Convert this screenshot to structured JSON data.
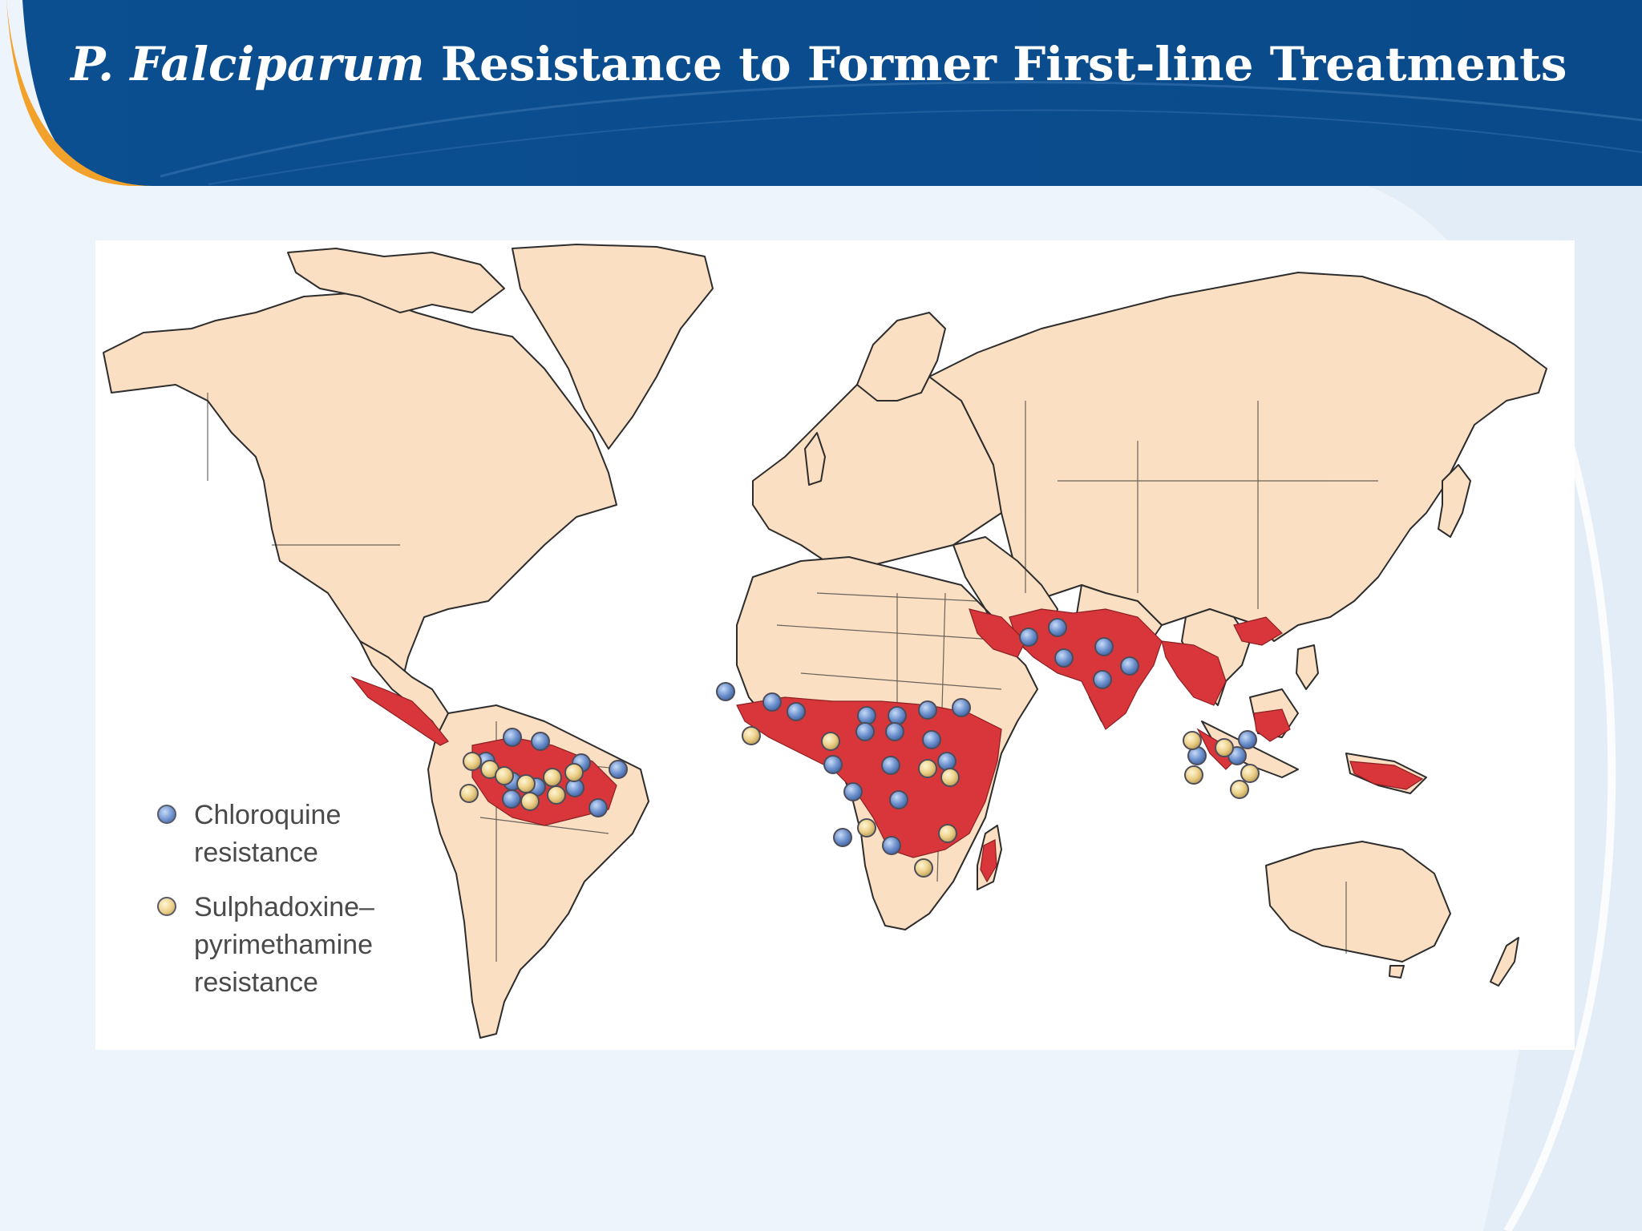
{
  "slide": {
    "title_italic": "P. Falciparum",
    "title_rest": " Resistance to Former First-line Treatments"
  },
  "colors": {
    "header": "#0a4c8c",
    "header_dark": "#0b3f79",
    "accent_orange": "#f2a12b",
    "land": "#fbdfc3",
    "coast": "#2d2d2d",
    "resistance_area": "#d9363b",
    "chloroquine_marker": "#6f93cf",
    "sp_marker": "#ecd089",
    "map_bg": "#ffffff"
  },
  "map": {
    "legend": [
      {
        "marker": "chloroquine",
        "lines": [
          "Chloroquine",
          "resistance"
        ]
      },
      {
        "marker": "sulphadoxine-pyrimethamine",
        "lines": [
          "Sulphadoxine–",
          "pyrimethamine",
          "resistance"
        ]
      }
    ]
  }
}
